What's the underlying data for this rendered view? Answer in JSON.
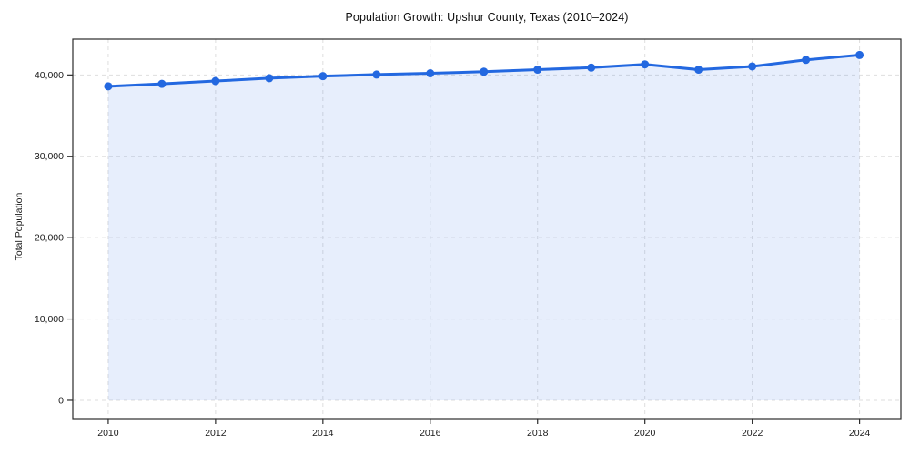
{
  "title": "Population Growth: Upshur County, Texas (2010–2024)",
  "chart_data": {
    "type": "line",
    "title": "Population Growth: Upshur County, Texas (2010–2024)",
    "xlabel": "",
    "ylabel": "Total Population",
    "series_name": "Total Population",
    "x": [
      2010,
      2011,
      2012,
      2013,
      2014,
      2015,
      2016,
      2017,
      2018,
      2019,
      2020,
      2021,
      2022,
      2023,
      2024
    ],
    "values": [
      38600,
      38900,
      39250,
      39600,
      39850,
      40050,
      40200,
      40400,
      40650,
      40900,
      41300,
      40650,
      41050,
      41850,
      42450
    ],
    "xticks": [
      2010,
      2012,
      2014,
      2016,
      2018,
      2020,
      2022,
      2024
    ],
    "xtick_labels": [
      "2010",
      "2012",
      "2014",
      "2016",
      "2018",
      "2020",
      "2022",
      "2024"
    ],
    "yticks": [
      0,
      10000,
      20000,
      30000,
      40000
    ],
    "ytick_labels": [
      "0",
      "10,000",
      "20,000",
      "30,000",
      "40,000"
    ],
    "xlim": [
      2009.34,
      2024.77
    ],
    "ylim": [
      -2240,
      44400
    ],
    "grid": true,
    "grid_style": "dashed",
    "legend": false,
    "area_fill": true,
    "area_baseline": 0,
    "marker": "circle",
    "colors": {
      "line": "#2368e0",
      "marker": "#2368e0",
      "fill": "rgba(35,104,224,0.11)",
      "grid": "#dedede",
      "spine": "#2b2b2b",
      "text": "#1a1a1a",
      "background": "#ffffff"
    }
  }
}
